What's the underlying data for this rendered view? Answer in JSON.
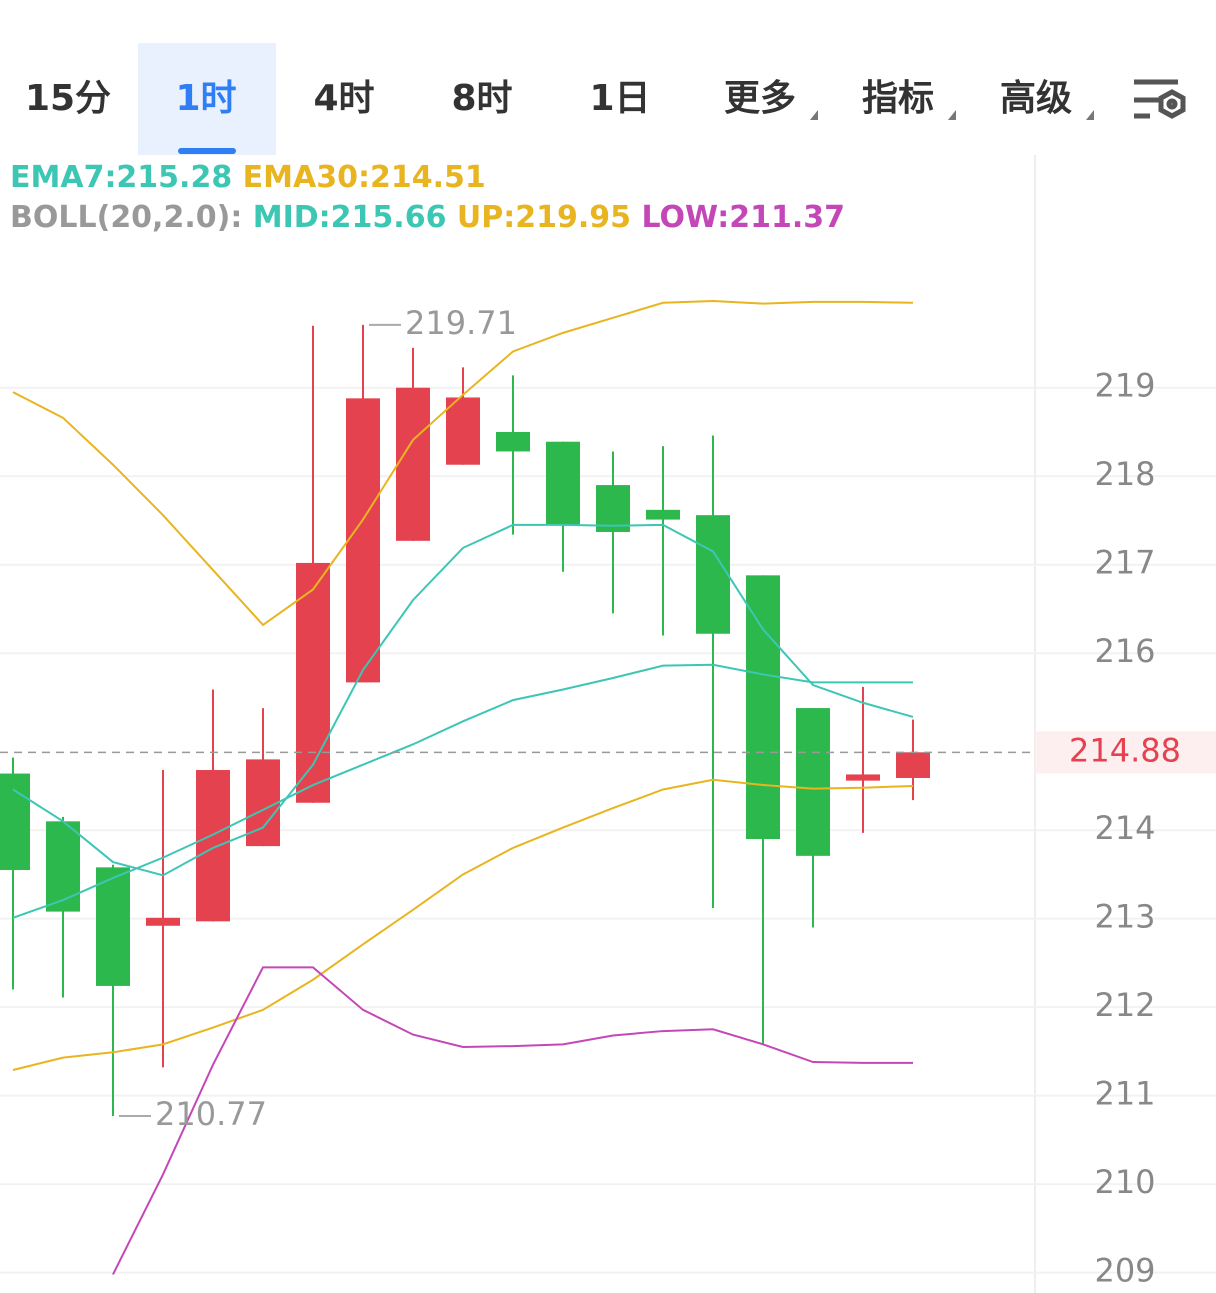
{
  "tabs": [
    "15分",
    "1时",
    "4时",
    "8时",
    "1日",
    "更多",
    "指标",
    "高级"
  ],
  "active_tab": "1时",
  "chart_data": {
    "type": "candlestick",
    "categories": [
      null,
      null,
      null,
      null,
      null,
      null,
      null,
      null,
      null,
      null,
      null,
      null,
      null,
      null,
      null,
      null,
      null,
      null,
      null
    ],
    "candles": {
      "open": [
        214.64,
        214.1,
        213.58,
        212.92,
        212.97,
        213.82,
        214.31,
        215.67,
        217.27,
        218.13,
        218.5,
        218.39,
        217.9,
        217.62,
        217.56,
        216.88,
        215.38,
        214.56,
        214.59
      ],
      "high": [
        214.82,
        214.15,
        213.61,
        214.68,
        215.59,
        215.38,
        219.7,
        219.71,
        219.45,
        219.23,
        219.14,
        218.39,
        218.28,
        218.34,
        218.46,
        216.88,
        215.38,
        215.62,
        215.25
      ],
      "low": [
        212.2,
        212.11,
        210.77,
        211.32,
        212.97,
        213.82,
        214.31,
        215.67,
        217.27,
        218.13,
        217.34,
        216.92,
        216.45,
        216.2,
        213.12,
        211.58,
        212.9,
        213.97,
        214.34
      ],
      "close": [
        213.55,
        213.08,
        212.24,
        213.01,
        214.68,
        214.8,
        217.02,
        218.88,
        219.0,
        218.89,
        218.28,
        217.45,
        217.37,
        217.51,
        216.22,
        213.9,
        213.71,
        214.63,
        214.88
      ]
    },
    "up_color": "#e5424f",
    "down_color": "#2db84d",
    "series": [
      {
        "name": "EMA7:215.28",
        "color": "#3cc6b4",
        "values": [
          214.46,
          214.1,
          213.64,
          213.49,
          213.8,
          214.03,
          214.74,
          215.81,
          216.6,
          217.19,
          217.45,
          217.45,
          217.44,
          217.45,
          217.15,
          216.27,
          215.64,
          215.44,
          215.28
        ]
      },
      {
        "name": "EMA30:214.51",
        "color": "#e8b520",
        "values": [
          211.29,
          211.43,
          211.49,
          211.58,
          211.77,
          211.97,
          212.31,
          212.71,
          213.1,
          213.5,
          213.8,
          214.03,
          214.25,
          214.46,
          214.57,
          214.51,
          214.47,
          214.48,
          214.5
        ]
      },
      {
        "name": "MID:215.66",
        "color": "#3cc6b4",
        "values": [
          213.01,
          213.21,
          213.46,
          213.69,
          213.95,
          214.23,
          214.51,
          214.74,
          214.97,
          215.23,
          215.47,
          215.59,
          215.72,
          215.86,
          215.87,
          215.76,
          215.67,
          215.67,
          215.67
        ]
      },
      {
        "name": "UP:219.95",
        "color": "#e8b520",
        "values": [
          218.95,
          218.66,
          218.13,
          217.56,
          216.94,
          216.32,
          216.72,
          217.51,
          218.41,
          218.92,
          219.41,
          219.62,
          219.79,
          219.96,
          219.98,
          219.95,
          219.97,
          219.97,
          219.96
        ]
      },
      {
        "name": "LOW:211.37",
        "color": "#c447b8",
        "values": [
          null,
          null,
          208.98,
          210.11,
          211.35,
          212.45,
          212.45,
          211.97,
          211.69,
          211.55,
          211.56,
          211.58,
          211.68,
          211.73,
          211.75,
          211.58,
          211.38,
          211.37,
          211.37
        ]
      }
    ],
    "boll_label": "BOLL(20,2.0):",
    "annotations": [
      "219.71",
      "210.77"
    ],
    "last_price": 214.88,
    "ylim": [
      208.77,
      221.63
    ],
    "yticks": [
      209,
      210,
      211,
      212,
      213,
      214,
      216,
      217,
      218,
      219
    ],
    "grid": true
  }
}
